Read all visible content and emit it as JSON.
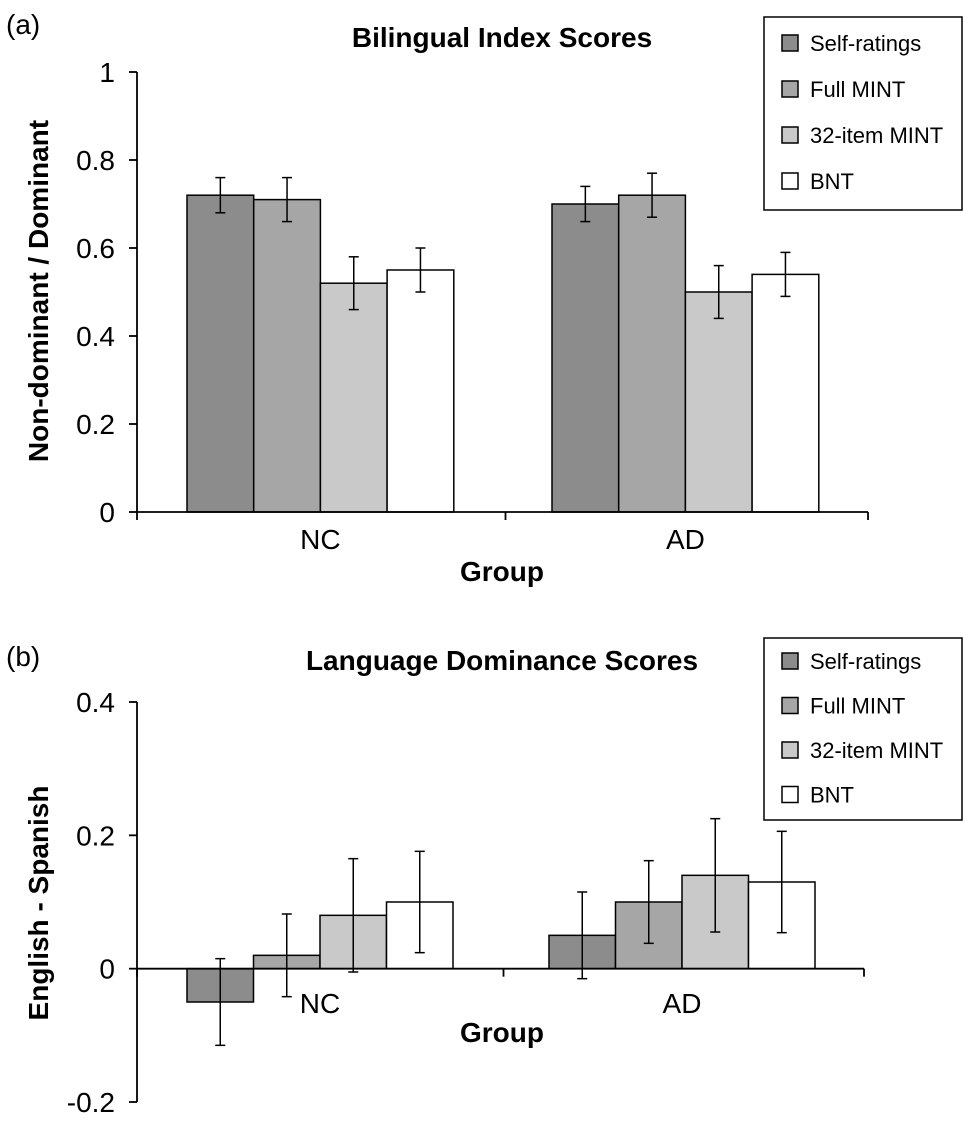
{
  "chart_data": [
    {
      "panel_label": "(a)",
      "type": "bar",
      "title": "Bilingual Index Scores",
      "xlabel": "Group",
      "ylabel": "Non-dominant / Dominant",
      "categories": [
        "NC",
        "AD"
      ],
      "ylim": [
        0,
        1
      ],
      "yticks": [
        0,
        0.2,
        0.4,
        0.6,
        0.8,
        1
      ],
      "ytick_labels": [
        "0",
        "0.2",
        "0.4",
        "0.6",
        "0.8",
        "1"
      ],
      "legend_position": "top-right",
      "grid": false,
      "error_bars": true,
      "series": [
        {
          "name": "Self-ratings",
          "color": "#8c8c8c",
          "values": [
            0.72,
            0.7
          ],
          "err": [
            0.04,
            0.04
          ]
        },
        {
          "name": "Full MINT",
          "color": "#a6a6a6",
          "values": [
            0.71,
            0.72
          ],
          "err": [
            0.05,
            0.05
          ]
        },
        {
          "name": "32-item MINT",
          "color": "#c9c9c9",
          "values": [
            0.52,
            0.5
          ],
          "err": [
            0.06,
            0.06
          ]
        },
        {
          "name": "BNT",
          "color": "#ffffff",
          "values": [
            0.55,
            0.54
          ],
          "err": [
            0.05,
            0.05
          ]
        }
      ]
    },
    {
      "panel_label": "(b)",
      "type": "bar",
      "title": "Language Dominance Scores",
      "xlabel": "Group",
      "ylabel": "English - Spanish",
      "categories": [
        "NC",
        "AD"
      ],
      "ylim": [
        -0.2,
        0.4
      ],
      "yticks": [
        -0.2,
        0,
        0.2,
        0.4
      ],
      "ytick_labels": [
        "-0.2",
        "0",
        "0.2",
        "0.4"
      ],
      "legend_position": "top-right",
      "grid": false,
      "error_bars": true,
      "series": [
        {
          "name": "Self-ratings",
          "color": "#8c8c8c",
          "values": [
            -0.05,
            0.05
          ],
          "err": [
            0.065,
            0.065
          ]
        },
        {
          "name": "Full MINT",
          "color": "#a6a6a6",
          "values": [
            0.02,
            0.1
          ],
          "err": [
            0.062,
            0.062
          ]
        },
        {
          "name": "32-item MINT",
          "color": "#c9c9c9",
          "values": [
            0.08,
            0.14
          ],
          "err": [
            0.085,
            0.085
          ]
        },
        {
          "name": "BNT",
          "color": "#ffffff",
          "values": [
            0.1,
            0.13
          ],
          "err": [
            0.076,
            0.076
          ]
        }
      ]
    }
  ]
}
